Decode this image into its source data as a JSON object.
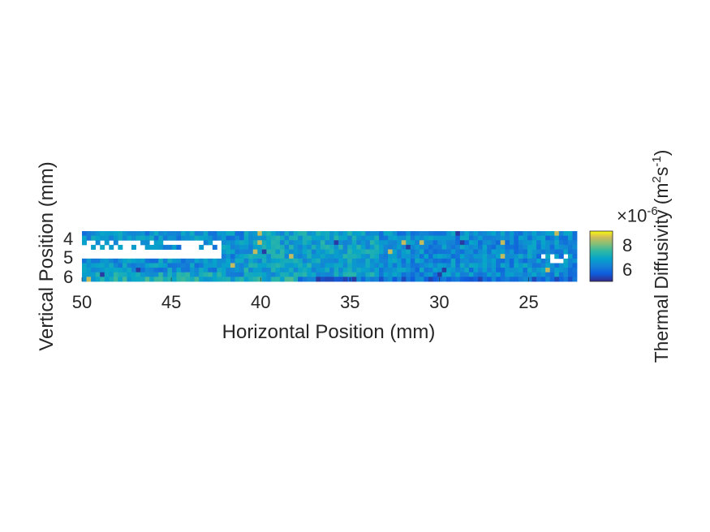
{
  "chart_data": {
    "type": "heatmap",
    "xlabel": "Horizontal Position (mm)",
    "ylabel": "Vertical Position (mm)",
    "colorbar_label": "Thermal Diffusivity (m²s⁻¹)",
    "colorbar_label_parts": {
      "base": "Thermal Diffusivity (m",
      "sup1": "2",
      "mid": "s",
      "sup2": "-1",
      "end": ")"
    },
    "colorbar_exponent_text": "×10",
    "colorbar_exponent_power": "-6",
    "x_reversed": true,
    "y_reversed": true,
    "xlim": [
      50,
      22.3
    ],
    "ylim": [
      3.6,
      6.2
    ],
    "clim": [
      5.1,
      9.2
    ],
    "x_ticks": [
      "50",
      "45",
      "40",
      "35",
      "30",
      "25"
    ],
    "x_tick_values": [
      50,
      45,
      40,
      35,
      30,
      25
    ],
    "y_ticks": [
      "4",
      "5",
      "6"
    ],
    "y_tick_values": [
      4,
      5,
      6
    ],
    "colorbar_ticks": [
      "8",
      "6"
    ],
    "colorbar_tick_values": [
      8,
      6
    ],
    "colormap": "parula",
    "grid": false,
    "value_unit_scale": "1e-6",
    "grid_shape_approx": {
      "columns": 110,
      "rows": 11
    },
    "region_values_approx": [
      {
        "region": "left columns (x 50-42)",
        "value": 6.6
      },
      {
        "region": "middle columns (x 40-34)",
        "value": 6.9
      },
      {
        "region": "right columns (x 33-23)",
        "value": 6.5
      },
      {
        "region": "bottom row left (x 50-38)",
        "value": 7.2
      },
      {
        "region": "bottom row right (x 38-23)",
        "value": 6.0
      },
      {
        "region": "hot spot near x 27",
        "value": 8.8
      },
      {
        "region": "cold spot near x 36",
        "value": 5.3
      }
    ],
    "missing_data": "white gaps near x 50-42, y 4.1-5.0 and x 24-23, y 4.9-5.2"
  }
}
